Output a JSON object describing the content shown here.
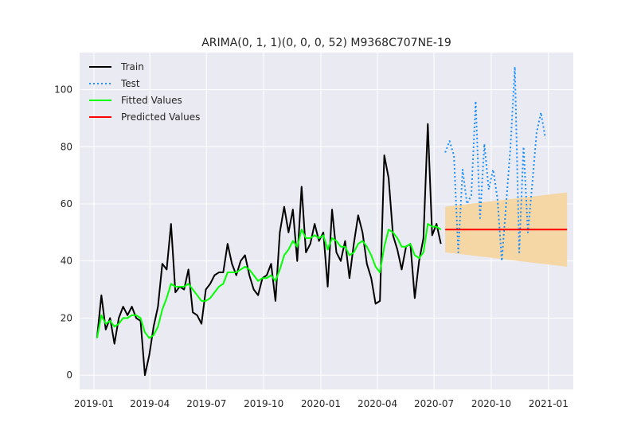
{
  "chart_data": {
    "type": "line",
    "title": "ARIMA(0, 1, 1)(0, 0, 0, 52) M9368C707NE-19",
    "xlabel": "",
    "ylabel": "",
    "xlim": [
      "2018-12-09",
      "2021-02-10"
    ],
    "ylim": [
      -5,
      113
    ],
    "grid": true,
    "legend": {
      "placement": "top-left",
      "entries": [
        "Train",
        "Test",
        "Fitted Values",
        "Predicted Values"
      ]
    },
    "x_ticks": [
      "2019-01",
      "2019-04",
      "2019-07",
      "2019-10",
      "2020-01",
      "2020-04",
      "2020-07",
      "2020-10",
      "2021-01"
    ],
    "y_ticks": [
      0,
      20,
      40,
      60,
      80,
      100
    ],
    "colors": {
      "background": "#eaeaf2",
      "grid": "#ffffff",
      "train": "#000000",
      "test": "#1e90ff",
      "fitted": "#00ff00",
      "predicted": "#ff0000",
      "interval": "#f5d5a0"
    },
    "series": [
      {
        "name": "Train",
        "style": "solid",
        "points": [
          [
            "2019-01-06",
            13
          ],
          [
            "2019-01-13",
            28
          ],
          [
            "2019-01-20",
            16
          ],
          [
            "2019-01-27",
            20
          ],
          [
            "2019-02-03",
            11
          ],
          [
            "2019-02-10",
            20
          ],
          [
            "2019-02-17",
            24
          ],
          [
            "2019-02-24",
            21
          ],
          [
            "2019-03-03",
            24
          ],
          [
            "2019-03-10",
            20
          ],
          [
            "2019-03-17",
            19
          ],
          [
            "2019-03-24",
            0
          ],
          [
            "2019-03-31",
            7
          ],
          [
            "2019-04-07",
            17
          ],
          [
            "2019-04-14",
            24
          ],
          [
            "2019-04-21",
            39
          ],
          [
            "2019-04-28",
            37
          ],
          [
            "2019-05-05",
            53
          ],
          [
            "2019-05-12",
            29
          ],
          [
            "2019-05-19",
            31
          ],
          [
            "2019-05-26",
            30
          ],
          [
            "2019-06-02",
            37
          ],
          [
            "2019-06-09",
            22
          ],
          [
            "2019-06-16",
            21
          ],
          [
            "2019-06-23",
            18
          ],
          [
            "2019-06-30",
            30
          ],
          [
            "2019-07-07",
            32
          ],
          [
            "2019-07-14",
            35
          ],
          [
            "2019-07-21",
            36
          ],
          [
            "2019-07-28",
            36
          ],
          [
            "2019-08-04",
            46
          ],
          [
            "2019-08-11",
            39
          ],
          [
            "2019-08-18",
            35
          ],
          [
            "2019-08-25",
            40
          ],
          [
            "2019-09-01",
            42
          ],
          [
            "2019-09-08",
            35
          ],
          [
            "2019-09-15",
            30
          ],
          [
            "2019-09-22",
            28
          ],
          [
            "2019-09-29",
            34
          ],
          [
            "2019-10-06",
            35
          ],
          [
            "2019-10-13",
            39
          ],
          [
            "2019-10-20",
            26
          ],
          [
            "2019-10-27",
            50
          ],
          [
            "2019-11-03",
            59
          ],
          [
            "2019-11-10",
            50
          ],
          [
            "2019-11-17",
            58
          ],
          [
            "2019-11-24",
            40
          ],
          [
            "2019-12-01",
            66
          ],
          [
            "2019-12-08",
            43
          ],
          [
            "2019-12-15",
            46
          ],
          [
            "2019-12-22",
            53
          ],
          [
            "2019-12-29",
            47
          ],
          [
            "2020-01-05",
            50
          ],
          [
            "2020-01-12",
            31
          ],
          [
            "2020-01-19",
            58
          ],
          [
            "2020-01-26",
            43
          ],
          [
            "2020-02-02",
            40
          ],
          [
            "2020-02-09",
            47
          ],
          [
            "2020-02-16",
            34
          ],
          [
            "2020-02-23",
            46
          ],
          [
            "2020-03-01",
            56
          ],
          [
            "2020-03-08",
            50
          ],
          [
            "2020-03-15",
            39
          ],
          [
            "2020-03-22",
            34
          ],
          [
            "2020-03-29",
            25
          ],
          [
            "2020-04-05",
            26
          ],
          [
            "2020-04-12",
            77
          ],
          [
            "2020-04-19",
            69
          ],
          [
            "2020-04-26",
            49
          ],
          [
            "2020-05-03",
            44
          ],
          [
            "2020-05-10",
            37
          ],
          [
            "2020-05-17",
            45
          ],
          [
            "2020-05-24",
            46
          ],
          [
            "2020-05-31",
            27
          ],
          [
            "2020-06-07",
            40
          ],
          [
            "2020-06-14",
            48
          ],
          [
            "2020-06-21",
            88
          ],
          [
            "2020-06-28",
            49
          ],
          [
            "2020-07-05",
            53
          ],
          [
            "2020-07-12",
            46
          ]
        ]
      },
      {
        "name": "Test",
        "style": "dotted",
        "points": [
          [
            "2020-07-19",
            78
          ],
          [
            "2020-07-26",
            82
          ],
          [
            "2020-08-02",
            77
          ],
          [
            "2020-08-09",
            43
          ],
          [
            "2020-08-16",
            72
          ],
          [
            "2020-08-23",
            60
          ],
          [
            "2020-08-30",
            63
          ],
          [
            "2020-09-06",
            96
          ],
          [
            "2020-09-13",
            55
          ],
          [
            "2020-09-20",
            81
          ],
          [
            "2020-09-27",
            65
          ],
          [
            "2020-10-04",
            72
          ],
          [
            "2020-10-11",
            62
          ],
          [
            "2020-10-18",
            40
          ],
          [
            "2020-10-25",
            60
          ],
          [
            "2020-11-01",
            80
          ],
          [
            "2020-11-08",
            108
          ],
          [
            "2020-11-15",
            43
          ],
          [
            "2020-11-22",
            80
          ],
          [
            "2020-11-29",
            50
          ],
          [
            "2020-12-06",
            67
          ],
          [
            "2020-12-13",
            85
          ],
          [
            "2020-12-20",
            92
          ],
          [
            "2020-12-27",
            83
          ]
        ]
      },
      {
        "name": "Fitted Values",
        "style": "solid",
        "points": [
          [
            "2019-01-06",
            13
          ],
          [
            "2019-01-13",
            21
          ],
          [
            "2019-01-20",
            18
          ],
          [
            "2019-01-27",
            19
          ],
          [
            "2019-02-03",
            17
          ],
          [
            "2019-02-10",
            18
          ],
          [
            "2019-02-17",
            20
          ],
          [
            "2019-02-24",
            20
          ],
          [
            "2019-03-03",
            21
          ],
          [
            "2019-03-10",
            21
          ],
          [
            "2019-03-17",
            20
          ],
          [
            "2019-03-24",
            15
          ],
          [
            "2019-03-31",
            13
          ],
          [
            "2019-04-07",
            14
          ],
          [
            "2019-04-14",
            17
          ],
          [
            "2019-04-21",
            23
          ],
          [
            "2019-04-28",
            27
          ],
          [
            "2019-05-05",
            32
          ],
          [
            "2019-05-12",
            31
          ],
          [
            "2019-05-19",
            31
          ],
          [
            "2019-05-26",
            31
          ],
          [
            "2019-06-02",
            32
          ],
          [
            "2019-06-09",
            30
          ],
          [
            "2019-06-16",
            28
          ],
          [
            "2019-06-23",
            26
          ],
          [
            "2019-06-30",
            26
          ],
          [
            "2019-07-07",
            27
          ],
          [
            "2019-07-14",
            29
          ],
          [
            "2019-07-21",
            31
          ],
          [
            "2019-07-28",
            32
          ],
          [
            "2019-08-04",
            36
          ],
          [
            "2019-08-11",
            36
          ],
          [
            "2019-08-18",
            36
          ],
          [
            "2019-08-25",
            37
          ],
          [
            "2019-09-01",
            38
          ],
          [
            "2019-09-08",
            37
          ],
          [
            "2019-09-15",
            35
          ],
          [
            "2019-09-22",
            33
          ],
          [
            "2019-09-29",
            34
          ],
          [
            "2019-10-06",
            34
          ],
          [
            "2019-10-13",
            35
          ],
          [
            "2019-10-20",
            33
          ],
          [
            "2019-10-27",
            37
          ],
          [
            "2019-11-03",
            42
          ],
          [
            "2019-11-10",
            44
          ],
          [
            "2019-11-17",
            47
          ],
          [
            "2019-11-24",
            45
          ],
          [
            "2019-12-01",
            51
          ],
          [
            "2019-12-08",
            48
          ],
          [
            "2019-12-15",
            48
          ],
          [
            "2019-12-22",
            49
          ],
          [
            "2019-12-29",
            48
          ],
          [
            "2020-01-05",
            49
          ],
          [
            "2020-01-12",
            44
          ],
          [
            "2020-01-19",
            48
          ],
          [
            "2020-01-26",
            47
          ],
          [
            "2020-02-02",
            45
          ],
          [
            "2020-02-09",
            45
          ],
          [
            "2020-02-16",
            42
          ],
          [
            "2020-02-23",
            43
          ],
          [
            "2020-03-01",
            46
          ],
          [
            "2020-03-08",
            47
          ],
          [
            "2020-03-15",
            45
          ],
          [
            "2020-03-22",
            42
          ],
          [
            "2020-03-29",
            38
          ],
          [
            "2020-04-05",
            36
          ],
          [
            "2020-04-12",
            45
          ],
          [
            "2020-04-19",
            51
          ],
          [
            "2020-04-26",
            50
          ],
          [
            "2020-05-03",
            48
          ],
          [
            "2020-05-10",
            45
          ],
          [
            "2020-05-17",
            45
          ],
          [
            "2020-05-24",
            46
          ],
          [
            "2020-05-31",
            42
          ],
          [
            "2020-06-07",
            41
          ],
          [
            "2020-06-14",
            43
          ],
          [
            "2020-06-21",
            53
          ],
          [
            "2020-06-28",
            52
          ],
          [
            "2020-07-05",
            52
          ],
          [
            "2020-07-12",
            51
          ]
        ]
      },
      {
        "name": "Predicted Values",
        "style": "solid",
        "points": [
          [
            "2020-07-19",
            51
          ],
          [
            "2021-01-31",
            51
          ]
        ]
      }
    ],
    "interval": {
      "name": "confidence interval",
      "x": [
        "2020-07-19",
        "2021-01-31"
      ],
      "lower": [
        43,
        38
      ],
      "upper": [
        59,
        64
      ]
    }
  }
}
